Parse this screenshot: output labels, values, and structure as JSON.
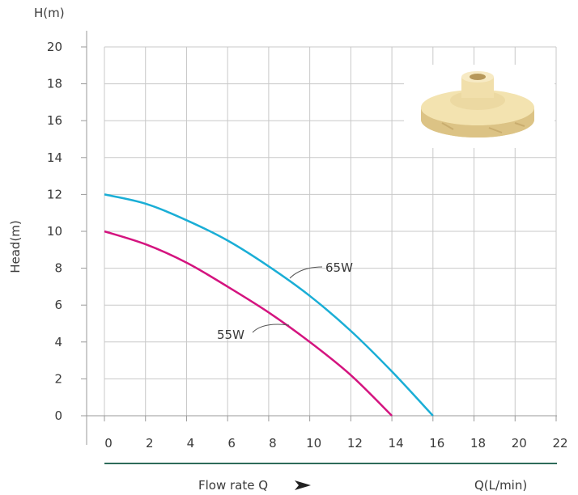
{
  "chart_data": {
    "type": "line",
    "title": "",
    "ylabel_top": "H(m)",
    "ylabel": "Head(m)",
    "xlabel": "Flow rate Q",
    "xunit": "Q(L/min)",
    "xlim": [
      0,
      22
    ],
    "ylim": [
      0,
      20
    ],
    "xticks": [
      "0",
      "2",
      "4",
      "6",
      "8",
      "10",
      "12",
      "14",
      "16",
      "18",
      "20",
      "22"
    ],
    "yticks": [
      "0",
      "2",
      "4",
      "6",
      "8",
      "10",
      "12",
      "14",
      "16",
      "18",
      "20"
    ],
    "grid": true,
    "colors": {
      "grid": "#c8c8c8",
      "baseline": "#2e6b5a",
      "arrow": "#222222"
    },
    "series": [
      {
        "name": "65W",
        "color": "#1aaed6",
        "x": [
          0,
          2,
          4,
          6,
          8,
          10,
          12,
          14,
          16
        ],
        "y": [
          12,
          11.5,
          10.6,
          9.5,
          8.1,
          6.5,
          4.6,
          2.4,
          0
        ]
      },
      {
        "name": "55W",
        "color": "#d4147f",
        "x": [
          0,
          2,
          4,
          6,
          8,
          10,
          12,
          14
        ],
        "y": [
          10,
          9.3,
          8.3,
          7.0,
          5.6,
          4.0,
          2.2,
          0
        ]
      }
    ],
    "image": "impeller-photo"
  }
}
